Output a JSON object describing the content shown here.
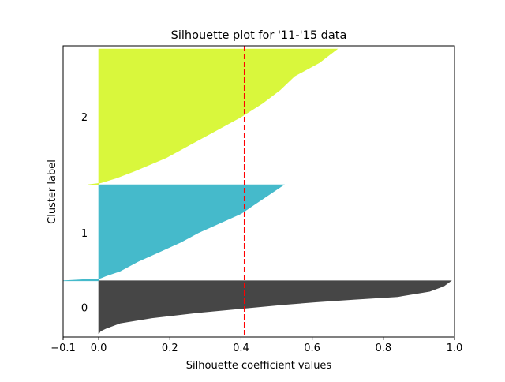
{
  "chart_data": {
    "type": "area",
    "title": "Silhouette plot for '11-'15 data",
    "xlabel": "Silhouette coefficient values",
    "ylabel": "Cluster label",
    "xlim": [
      -0.1,
      1.0
    ],
    "xticks": [
      -0.1,
      0.0,
      0.2,
      0.4,
      0.6,
      0.8,
      1.0
    ],
    "xtick_labels": [
      "−0.1",
      "0.0",
      "0.2",
      "0.4",
      "0.6",
      "0.8",
      "1.0"
    ],
    "grid": false,
    "average_silhouette": 0.41,
    "clusters": [
      {
        "label": "0",
        "color": "#3d3d3d",
        "y_range": [
          10,
          170
        ],
        "profile": [
          [
            0.0,
            0.0
          ],
          [
            0.05,
            0.005
          ],
          [
            0.1,
            0.02
          ],
          [
            0.2,
            0.06
          ],
          [
            0.3,
            0.15
          ],
          [
            0.4,
            0.28
          ],
          [
            0.45,
            0.36
          ],
          [
            0.5,
            0.44
          ],
          [
            0.55,
            0.52
          ],
          [
            0.6,
            0.61
          ],
          [
            0.65,
            0.72
          ],
          [
            0.7,
            0.84
          ],
          [
            0.8,
            0.93
          ],
          [
            0.9,
            0.97
          ],
          [
            1.0,
            0.99
          ]
        ]
      },
      {
        "label": "1",
        "color": "#3cb7c9",
        "y_range": [
          170,
          460
        ],
        "profile": [
          [
            0.0,
            -0.1
          ],
          [
            0.02,
            0.0
          ],
          [
            0.05,
            0.02
          ],
          [
            0.1,
            0.06
          ],
          [
            0.2,
            0.11
          ],
          [
            0.3,
            0.17
          ],
          [
            0.4,
            0.23
          ],
          [
            0.5,
            0.28
          ],
          [
            0.6,
            0.34
          ],
          [
            0.7,
            0.4
          ],
          [
            0.8,
            0.44
          ],
          [
            0.9,
            0.48
          ],
          [
            1.0,
            0.52
          ]
        ]
      },
      {
        "label": "2",
        "color": "#d7f732",
        "y_range": [
          460,
          870
        ],
        "profile": [
          [
            0.0,
            -0.03
          ],
          [
            0.01,
            0.0
          ],
          [
            0.05,
            0.05
          ],
          [
            0.1,
            0.1
          ],
          [
            0.2,
            0.19
          ],
          [
            0.3,
            0.26
          ],
          [
            0.4,
            0.33
          ],
          [
            0.5,
            0.4
          ],
          [
            0.6,
            0.46
          ],
          [
            0.7,
            0.51
          ],
          [
            0.8,
            0.55
          ],
          [
            0.9,
            0.62
          ],
          [
            1.0,
            0.67
          ]
        ]
      }
    ]
  }
}
